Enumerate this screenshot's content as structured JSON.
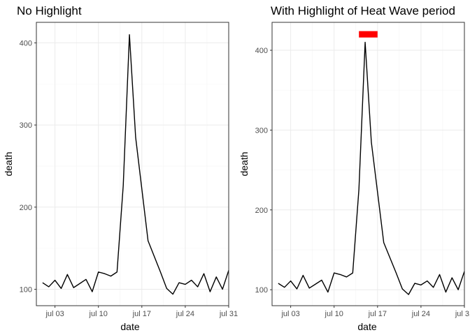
{
  "chart_data": [
    {
      "type": "line",
      "title": "No Highlight",
      "xlabel": "date",
      "ylabel": "death",
      "x": [
        "2006-07-01",
        "2006-07-02",
        "2006-07-03",
        "2006-07-04",
        "2006-07-05",
        "2006-07-06",
        "2006-07-07",
        "2006-07-08",
        "2006-07-09",
        "2006-07-10",
        "2006-07-11",
        "2006-07-12",
        "2006-07-13",
        "2006-07-14",
        "2006-07-15",
        "2006-07-16",
        "2006-07-17",
        "2006-07-18",
        "2006-07-19",
        "2006-07-20",
        "2006-07-21",
        "2006-07-22",
        "2006-07-23",
        "2006-07-24",
        "2006-07-25",
        "2006-07-26",
        "2006-07-27",
        "2006-07-28",
        "2006-07-29",
        "2006-07-30",
        "2006-07-31"
      ],
      "values": [
        108,
        103,
        111,
        101,
        118,
        102,
        107,
        112,
        97,
        121,
        119,
        116,
        121,
        226,
        410,
        285,
        222,
        159,
        140,
        121,
        101,
        94,
        108,
        106,
        111,
        103,
        119,
        97,
        115,
        100,
        123
      ],
      "ylim": [
        80,
        425
      ],
      "yticks": [
        100,
        200,
        300,
        400
      ],
      "xticks": [
        "2006-07-03",
        "2006-07-10",
        "2006-07-17",
        "2006-07-24",
        "2006-07-31"
      ],
      "xtick_labels": [
        "jul 03",
        "jul 10",
        "jul 17",
        "jul 24",
        "jul 31"
      ],
      "xlim": [
        "2006-07-00",
        "2006-07-31"
      ],
      "grid": true
    },
    {
      "type": "line",
      "title": "With Highlight of Heat Wave period",
      "xlabel": "date",
      "ylabel": "death",
      "x": [
        "2006-07-01",
        "2006-07-02",
        "2006-07-03",
        "2006-07-04",
        "2006-07-05",
        "2006-07-06",
        "2006-07-07",
        "2006-07-08",
        "2006-07-09",
        "2006-07-10",
        "2006-07-11",
        "2006-07-12",
        "2006-07-13",
        "2006-07-14",
        "2006-07-15",
        "2006-07-16",
        "2006-07-17",
        "2006-07-18",
        "2006-07-19",
        "2006-07-20",
        "2006-07-21",
        "2006-07-22",
        "2006-07-23",
        "2006-07-24",
        "2006-07-25",
        "2006-07-26",
        "2006-07-27",
        "2006-07-28",
        "2006-07-29",
        "2006-07-30",
        "2006-07-31"
      ],
      "values": [
        108,
        103,
        111,
        101,
        118,
        102,
        107,
        112,
        97,
        121,
        119,
        116,
        121,
        226,
        410,
        285,
        222,
        159,
        140,
        121,
        101,
        94,
        108,
        106,
        111,
        103,
        119,
        97,
        115,
        100,
        123
      ],
      "ylim": [
        80,
        435
      ],
      "yticks": [
        100,
        200,
        300,
        400
      ],
      "xticks": [
        "2006-07-03",
        "2006-07-10",
        "2006-07-17",
        "2006-07-24",
        "2006-07-31"
      ],
      "xtick_labels": [
        "jul 03",
        "jul 10",
        "jul 17",
        "jul 24",
        "jul 31"
      ],
      "xlim": [
        "2006-07-00",
        "2006-07-31"
      ],
      "grid": true,
      "highlight": {
        "start": "2006-07-14",
        "end": "2006-07-17",
        "ymin": 416,
        "ymax": 424,
        "color": "#ff0000"
      }
    }
  ]
}
